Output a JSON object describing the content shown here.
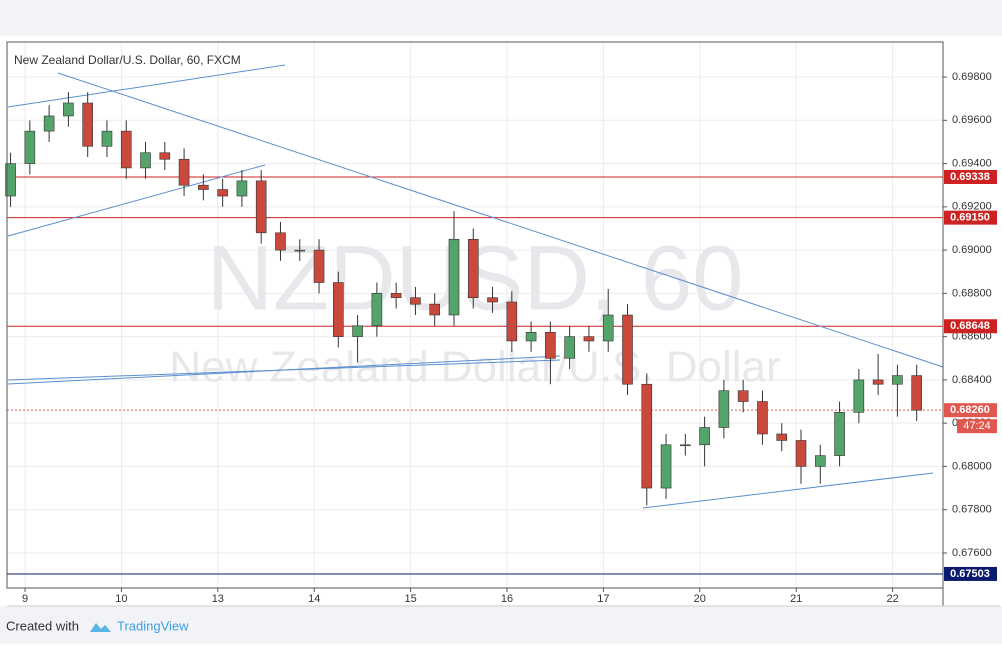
{
  "chart_data": {
    "type": "candlestick",
    "title": "New Zealand Dollar/U.S. Dollar, 60, FXCM",
    "watermark": "NZDUSD, 60",
    "watermark_subtitle": "New Zealand Dollar/U.S. Dollar",
    "x": [
      -0.15,
      0.05,
      0.25,
      0.45,
      0.65,
      0.85,
      1.05,
      1.25,
      1.45,
      1.65,
      1.85,
      2.05,
      2.25,
      2.45,
      2.65,
      2.85,
      3.05,
      3.25,
      3.45,
      3.65,
      3.85,
      4.05,
      4.25,
      4.45,
      4.65,
      4.85,
      5.05,
      5.25,
      5.45,
      5.65,
      5.85,
      6.05,
      6.25,
      6.45,
      6.65,
      6.85,
      7.05,
      7.25,
      7.45,
      7.65,
      7.85,
      8.05,
      8.25,
      8.45,
      8.65,
      8.85,
      9.05,
      9.25
    ],
    "open": [
      0.6925,
      0.694,
      0.6955,
      0.6962,
      0.6968,
      0.6948,
      0.6955,
      0.6938,
      0.6945,
      0.6942,
      0.693,
      0.6928,
      0.6925,
      0.6932,
      0.6908,
      0.69,
      0.69,
      0.6885,
      0.686,
      0.6865,
      0.688,
      0.6878,
      0.6875,
      0.687,
      0.6905,
      0.6878,
      0.6876,
      0.6858,
      0.6862,
      0.685,
      0.686,
      0.6858,
      0.687,
      0.6838,
      0.679,
      0.681,
      0.681,
      0.6818,
      0.6835,
      0.683,
      0.6815,
      0.6812,
      0.68,
      0.6805,
      0.6825,
      0.684,
      0.6838,
      0.6842
    ],
    "high": [
      0.6945,
      0.696,
      0.6967,
      0.6973,
      0.6973,
      0.696,
      0.696,
      0.695,
      0.695,
      0.6947,
      0.6935,
      0.6933,
      0.6937,
      0.6937,
      0.6913,
      0.6905,
      0.6905,
      0.689,
      0.687,
      0.6885,
      0.6885,
      0.6883,
      0.688,
      0.6918,
      0.691,
      0.6883,
      0.6881,
      0.6867,
      0.6867,
      0.6865,
      0.6865,
      0.6882,
      0.6875,
      0.6843,
      0.6815,
      0.6815,
      0.6823,
      0.684,
      0.684,
      0.6835,
      0.682,
      0.6817,
      0.681,
      0.683,
      0.6845,
      0.6852,
      0.6847,
      0.6847
    ],
    "low": [
      0.692,
      0.6935,
      0.695,
      0.6957,
      0.6943,
      0.6943,
      0.6933,
      0.6933,
      0.6937,
      0.6925,
      0.6923,
      0.692,
      0.692,
      0.6903,
      0.6895,
      0.6895,
      0.688,
      0.6855,
      0.6848,
      0.686,
      0.6873,
      0.687,
      0.6865,
      0.6865,
      0.6873,
      0.6871,
      0.6853,
      0.6853,
      0.6838,
      0.6845,
      0.6853,
      0.6853,
      0.6833,
      0.6782,
      0.6785,
      0.6805,
      0.68,
      0.6813,
      0.6825,
      0.681,
      0.6807,
      0.6792,
      0.6792,
      0.68,
      0.682,
      0.6833,
      0.6823,
      0.6821
    ],
    "close": [
      0.694,
      0.6955,
      0.6962,
      0.6968,
      0.6948,
      0.6955,
      0.6938,
      0.6945,
      0.6942,
      0.693,
      0.6928,
      0.6925,
      0.6932,
      0.6908,
      0.69,
      0.69,
      0.6885,
      0.686,
      0.6865,
      0.688,
      0.6878,
      0.6875,
      0.687,
      0.6905,
      0.6878,
      0.6876,
      0.6858,
      0.6862,
      0.685,
      0.686,
      0.6858,
      0.687,
      0.6838,
      0.679,
      0.681,
      0.681,
      0.6818,
      0.6835,
      0.683,
      0.6815,
      0.6812,
      0.68,
      0.6805,
      0.6825,
      0.684,
      0.6838,
      0.6842,
      0.6826
    ],
    "up_color": "#53a36b",
    "down_color": "#c94a3c",
    "xlim": [
      -0.187,
      9.523
    ],
    "xticks": [
      {
        "value": 0,
        "label": "9"
      },
      {
        "value": 1,
        "label": "10"
      },
      {
        "value": 2,
        "label": "13"
      },
      {
        "value": 3,
        "label": "14"
      },
      {
        "value": 4,
        "label": "15"
      },
      {
        "value": 5,
        "label": "16"
      },
      {
        "value": 6,
        "label": "17"
      },
      {
        "value": 7,
        "label": "20"
      },
      {
        "value": 8,
        "label": "21"
      },
      {
        "value": 9,
        "label": "22"
      }
    ],
    "ylim": [
      0.67438,
      0.69962
    ],
    "yticks": [
      {
        "value": 0.676,
        "label": "0.67600"
      },
      {
        "value": 0.678,
        "label": "0.67800"
      },
      {
        "value": 0.68,
        "label": "0.68000"
      },
      {
        "value": 0.682,
        "label": "0.68200"
      },
      {
        "value": 0.684,
        "label": "0.68400"
      },
      {
        "value": 0.686,
        "label": "0.68600"
      },
      {
        "value": 0.688,
        "label": "0.68800"
      },
      {
        "value": 0.69,
        "label": "0.69000"
      },
      {
        "value": 0.692,
        "label": "0.69200"
      },
      {
        "value": 0.694,
        "label": "0.69400"
      },
      {
        "value": 0.696,
        "label": "0.69600"
      },
      {
        "value": 0.698,
        "label": "0.69800"
      }
    ],
    "grid": true,
    "levels": [
      {
        "value": 0.69338,
        "label": "0.69338",
        "color": "#cc2222"
      },
      {
        "value": 0.6915,
        "label": "0.69150",
        "color": "#cc2222"
      },
      {
        "value": 0.68648,
        "label": "0.68648",
        "color": "#cc2222"
      },
      {
        "value": 0.67503,
        "label": "0.67503",
        "color": "#0a1a6e"
      }
    ],
    "last_price": {
      "value": 0.6826,
      "label": "0.68260",
      "color": "#e0574f"
    },
    "countdown": "47:24"
  },
  "footer": {
    "created_with": "Created with",
    "brand": "TradingView"
  }
}
